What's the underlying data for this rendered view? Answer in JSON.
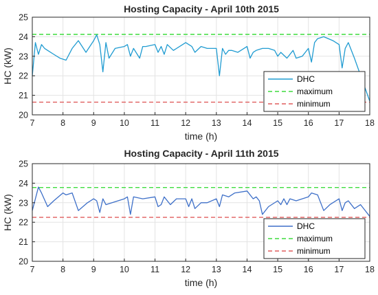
{
  "chart_data": [
    {
      "type": "line",
      "title": "Hosting Capacity -  April 10th 2015",
      "xlabel": "time (h)",
      "ylabel": "HC (kW)",
      "xlim": [
        7,
        18
      ],
      "ylim": [
        20,
        25
      ],
      "xticks": [
        "7",
        "8",
        "9",
        "10",
        "11",
        "12",
        "13",
        "14",
        "15",
        "16",
        "17",
        "18"
      ],
      "yticks": [
        "20",
        "21",
        "22",
        "23",
        "24",
        "25"
      ],
      "grid": true,
      "legend": "lower-right",
      "series": [
        {
          "name": "DHC",
          "color": "#1f9bd1",
          "style": "solid",
          "x": [
            7.0,
            7.1,
            7.2,
            7.3,
            7.4,
            7.5,
            7.7,
            7.9,
            8.1,
            8.3,
            8.5,
            8.75,
            9.0,
            9.1,
            9.2,
            9.3,
            9.4,
            9.5,
            9.7,
            10.0,
            10.1,
            10.2,
            10.3,
            10.5,
            10.6,
            10.7,
            11.0,
            11.1,
            11.2,
            11.3,
            11.4,
            11.6,
            12.0,
            12.2,
            12.3,
            12.5,
            12.7,
            13.0,
            13.1,
            13.2,
            13.3,
            13.4,
            13.5,
            13.7,
            14.0,
            14.1,
            14.2,
            14.3,
            14.5,
            14.7,
            14.9,
            15.0,
            15.1,
            15.3,
            15.5,
            15.6,
            15.8,
            16.0,
            16.1,
            16.2,
            16.3,
            16.5,
            16.8,
            17.0,
            17.1,
            17.2,
            17.3,
            17.5,
            18.0
          ],
          "y": [
            22.0,
            23.7,
            23.1,
            23.6,
            23.4,
            23.3,
            23.1,
            22.9,
            22.8,
            23.4,
            23.8,
            23.2,
            23.8,
            24.1,
            23.6,
            22.2,
            23.7,
            22.9,
            23.4,
            23.5,
            23.6,
            23.0,
            23.4,
            22.9,
            23.5,
            23.5,
            23.6,
            23.2,
            23.5,
            23.1,
            23.6,
            23.3,
            23.7,
            23.5,
            23.2,
            23.5,
            23.4,
            23.4,
            22.0,
            23.4,
            23.1,
            23.3,
            23.3,
            23.2,
            23.5,
            22.9,
            23.2,
            23.3,
            23.4,
            23.4,
            23.3,
            23.0,
            23.2,
            22.9,
            23.3,
            22.9,
            23.0,
            23.4,
            22.7,
            23.7,
            23.9,
            24.0,
            23.8,
            23.6,
            22.4,
            23.4,
            23.7,
            22.9,
            20.7
          ]
        },
        {
          "name": "maximum",
          "color": "#3ddc3d",
          "style": "dashed",
          "value": 24.12
        },
        {
          "name": "minimum",
          "color": "#e05c5c",
          "style": "dashed",
          "value": 20.65
        }
      ]
    },
    {
      "type": "line",
      "title": "Hosting Capacity -  April 11th 2015",
      "xlabel": "time (h)",
      "ylabel": "HC (kW)",
      "xlim": [
        7,
        18
      ],
      "ylim": [
        20,
        25
      ],
      "xticks": [
        "7",
        "8",
        "9",
        "10",
        "11",
        "12",
        "13",
        "14",
        "15",
        "16",
        "17",
        "18"
      ],
      "yticks": [
        "20",
        "21",
        "22",
        "23",
        "24",
        "25"
      ],
      "grid": true,
      "legend": "lower-right",
      "series": [
        {
          "name": "DHC",
          "color": "#3d6fc8",
          "style": "solid",
          "x": [
            7.0,
            7.1,
            7.2,
            7.3,
            7.5,
            7.7,
            8.0,
            8.1,
            8.3,
            8.5,
            8.8,
            9.0,
            9.1,
            9.2,
            9.3,
            9.4,
            9.6,
            10.0,
            10.1,
            10.2,
            10.3,
            10.6,
            11.0,
            11.1,
            11.2,
            11.3,
            11.5,
            11.7,
            12.0,
            12.1,
            12.2,
            12.3,
            12.5,
            12.7,
            13.0,
            13.1,
            13.2,
            13.4,
            13.6,
            14.0,
            14.2,
            14.3,
            14.4,
            14.5,
            14.7,
            15.0,
            15.1,
            15.2,
            15.3,
            15.4,
            15.6,
            16.0,
            16.1,
            16.3,
            16.5,
            16.7,
            17.0,
            17.1,
            17.2,
            17.3,
            17.5,
            17.7,
            18.0
          ],
          "y": [
            22.6,
            23.2,
            23.8,
            23.5,
            22.8,
            23.1,
            23.5,
            23.4,
            23.5,
            22.6,
            23.0,
            23.2,
            23.1,
            22.5,
            23.2,
            22.9,
            23.0,
            23.2,
            23.3,
            22.4,
            23.3,
            23.2,
            23.3,
            22.8,
            22.9,
            23.3,
            22.9,
            23.2,
            23.2,
            22.8,
            23.2,
            22.7,
            23.0,
            23.0,
            23.2,
            22.8,
            23.4,
            23.3,
            23.5,
            23.6,
            23.2,
            23.3,
            23.1,
            22.4,
            22.8,
            23.1,
            22.9,
            23.2,
            22.9,
            23.2,
            23.1,
            23.3,
            23.5,
            23.4,
            22.6,
            22.9,
            23.2,
            22.6,
            23.0,
            23.1,
            22.7,
            22.9,
            22.3
          ]
        },
        {
          "name": "maximum",
          "color": "#3ddc3d",
          "style": "dashed",
          "value": 23.78
        },
        {
          "name": "minimum",
          "color": "#e05c5c",
          "style": "dashed",
          "value": 22.25
        }
      ]
    }
  ]
}
